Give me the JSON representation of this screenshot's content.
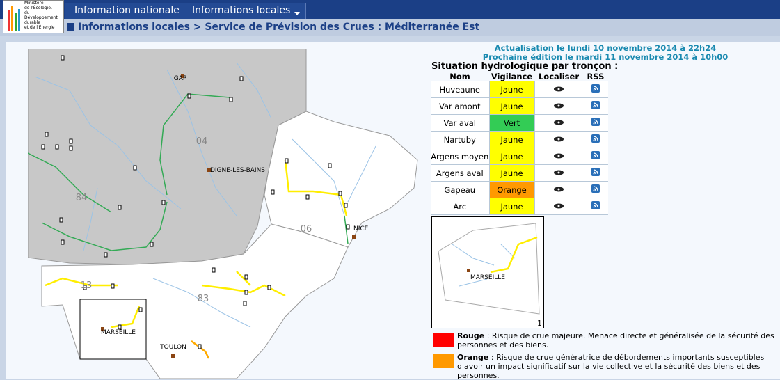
{
  "header": {
    "logo_lines": [
      "Ministère",
      "de l'Écologie,",
      "du Développement",
      "durable",
      "et de l'Énergie"
    ],
    "menu": [
      "Information nationale",
      "Informations locales"
    ]
  },
  "breadcrumb": "Informations locales > Service de Prévision des Crues : Méditerranée Est",
  "update": [
    "Actualisation le lundi 10 novembre 2014 à 22h24",
    "Prochaine édition le mardi 11 novembre 2014 à 10h00"
  ],
  "table": {
    "title": "Situation hydrologique par tronçon :",
    "columns": [
      "Nom",
      "Vigilance",
      "Localiser",
      "RSS"
    ],
    "rows": [
      {
        "name": "Huveaune",
        "vigilance": "Jaune",
        "color": "#ffff00"
      },
      {
        "name": "Var amont",
        "vigilance": "Jaune",
        "color": "#ffff00"
      },
      {
        "name": "Var aval",
        "vigilance": "Vert",
        "color": "#33cc55"
      },
      {
        "name": "Nartuby",
        "vigilance": "Jaune",
        "color": "#ffff00"
      },
      {
        "name": "Argens moyen",
        "vigilance": "Jaune",
        "color": "#ffff00"
      },
      {
        "name": "Argens aval",
        "vigilance": "Jaune",
        "color": "#ffff00"
      },
      {
        "name": "Gapeau",
        "vigilance": "Orange",
        "color": "#ff9900"
      },
      {
        "name": "Arc",
        "vigilance": "Jaune",
        "color": "#ffff00"
      }
    ]
  },
  "map": {
    "labels": [
      "GAP",
      "04",
      "DIGNE-LES-BAINS",
      "84",
      "06",
      "NICE",
      "13",
      "83",
      "MARSEILLE",
      "TOULON"
    ],
    "inset_labels": [
      "MARSEILLE",
      "1"
    ]
  },
  "legend": [
    {
      "level": "Rouge",
      "color": "#ff0000",
      "text": " : Risque de crue majeure. Menace directe et généralisée de la sécurité des personnes et des biens."
    },
    {
      "level": "Orange",
      "color": "#ff9900",
      "text": " : Risque de crue génératrice de débordements importants susceptibles d'avoir un impact significatif sur la vie collective et la sécurité des biens et des personnes."
    }
  ]
}
